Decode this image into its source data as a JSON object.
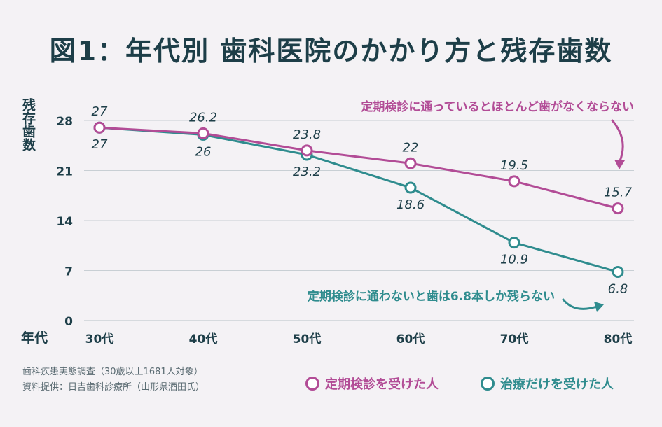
{
  "title": "図1：年代別 歯科医院のかかり方と残存歯数",
  "source_lines": [
    "歯科疾患実態調査（30歳以上1681人対象）",
    "資料提供：日吉歯科診療所（山形県酒田氏）"
  ],
  "colors": {
    "regular": "#b24c96",
    "treatment": "#2f8c8e",
    "text": "#1d3e48",
    "grid": "#c8cfd4",
    "background": "#f4f2f5"
  },
  "chart_data": {
    "type": "line",
    "title": "図1：年代別 歯科医院のかかり方と残存歯数",
    "xlabel": "年代",
    "ylabel": "残存歯数",
    "categories": [
      "30代",
      "40代",
      "50代",
      "60代",
      "70代",
      "80代"
    ],
    "yticks": [
      0,
      7,
      14,
      21,
      28
    ],
    "ylim": [
      0,
      28
    ],
    "grid": true,
    "legend_position": "bottom-right",
    "series": [
      {
        "name": "定期検診を受けた人",
        "color": "#b24c96",
        "values": [
          27,
          26.2,
          23.8,
          22,
          19.5,
          15.7
        ],
        "labels": [
          "27",
          "26.2",
          "23.8",
          "22",
          "19.5",
          "15.7"
        ]
      },
      {
        "name": "治療だけを受けた人",
        "color": "#2f8c8e",
        "values": [
          27,
          26,
          23.2,
          18.6,
          10.9,
          6.8
        ],
        "labels": [
          "27",
          "26",
          "23.2",
          "18.6",
          "10.9",
          "6.8"
        ]
      }
    ],
    "annotations": [
      {
        "text": "定期検診に通っているとほとんど歯がなくならない",
        "series": 0
      },
      {
        "text": "定期検診に通わないと歯は6.8本しか残らない",
        "series": 1
      }
    ]
  }
}
